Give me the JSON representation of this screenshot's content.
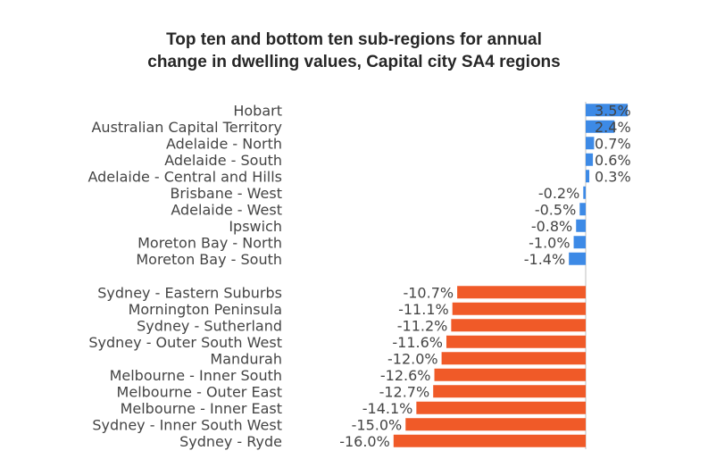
{
  "chart_data": {
    "type": "bar",
    "orientation": "horizontal",
    "title": [
      "Top ten and bottom ten sub-regions for annual",
      "change in dwelling values, Capital city SA4 regions"
    ],
    "value_suffix": "%",
    "series": [
      {
        "color": "#3d8ae6",
        "categories": [
          "Hobart",
          "Australian Capital Territory",
          "Adelaide - North",
          "Adelaide - South",
          "Adelaide - Central and Hills",
          "Brisbane - West",
          "Adelaide - West",
          "Ipswich",
          "Moreton Bay - North",
          "Moreton Bay - South"
        ],
        "values": [
          3.5,
          2.4,
          0.7,
          0.6,
          0.3,
          -0.2,
          -0.5,
          -0.8,
          -1.0,
          -1.4
        ],
        "labels": [
          "3.5%",
          "2.4%",
          "0.7%",
          "0.6%",
          "0.3%",
          "-0.2%",
          "-0.5%",
          "-0.8%",
          "-1.0%",
          "-1.4%"
        ]
      },
      {
        "color": "#f05a28",
        "categories": [
          "Sydney - Eastern Suburbs",
          "Mornington Peninsula",
          "Sydney - Sutherland",
          "Sydney - Outer South West",
          "Mandurah",
          "Melbourne - Inner South",
          "Melbourne - Outer East",
          "Melbourne - Inner East",
          "Sydney - Inner South West",
          "Sydney - Ryde"
        ],
        "values": [
          -10.7,
          -11.1,
          -11.2,
          -11.6,
          -12.0,
          -12.6,
          -12.7,
          -14.1,
          -15.0,
          -16.0
        ],
        "labels": [
          "-10.7%",
          "-11.1%",
          "-11.2%",
          "-11.6%",
          "-12.0%",
          "-12.6%",
          "-12.7%",
          "-14.1%",
          "-15.0%",
          "-16.0%"
        ]
      }
    ],
    "xlim": [
      -16.0,
      3.5
    ]
  }
}
